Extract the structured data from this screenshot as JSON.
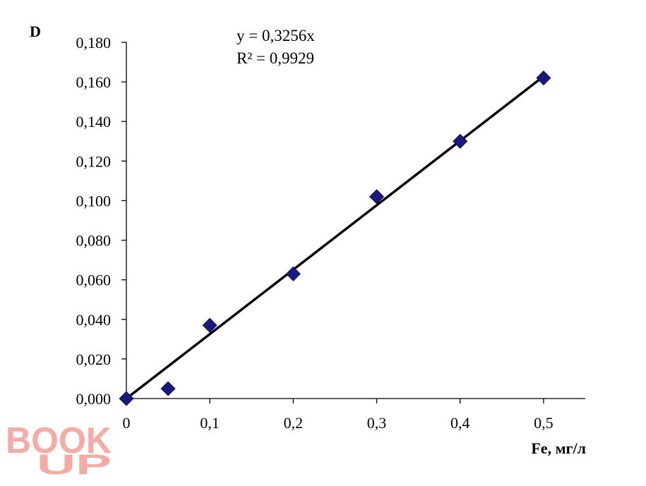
{
  "chart_data": {
    "type": "scatter",
    "xlabel": "Fe, мг/л",
    "ylabel": "D",
    "xlim": [
      0,
      0.55
    ],
    "ylim": [
      0,
      0.18
    ],
    "x_ticks": [
      0,
      0.1,
      0.2,
      0.3,
      0.4,
      0.5
    ],
    "x_tick_labels": [
      "0",
      "0,1",
      "0,2",
      "0,3",
      "0,4",
      "0,5"
    ],
    "y_ticks": [
      0,
      0.02,
      0.04,
      0.06,
      0.08,
      0.1,
      0.12,
      0.14,
      0.16,
      0.18
    ],
    "y_tick_labels": [
      "0,000",
      "0,020",
      "0,040",
      "0,060",
      "0,080",
      "0,100",
      "0,120",
      "0,140",
      "0,160",
      "0,180"
    ],
    "grid": false,
    "series": [
      {
        "marker": "diamond",
        "color": "#1a1a7e",
        "x": [
          0,
          0.05,
          0.1,
          0.2,
          0.3,
          0.4,
          0.5
        ],
        "y": [
          0.0,
          0.005,
          0.037,
          0.063,
          0.102,
          0.13,
          0.162
        ]
      }
    ],
    "trendline": {
      "slope": 0.3256,
      "x_range": [
        0,
        0.5
      ],
      "color": "#000000",
      "equation": "y = 0,3256x",
      "r_squared": "R² = 0,9929"
    }
  },
  "watermark": {
    "line1": "BOOK",
    "line2": "UP",
    "color": "#f4a39a"
  }
}
